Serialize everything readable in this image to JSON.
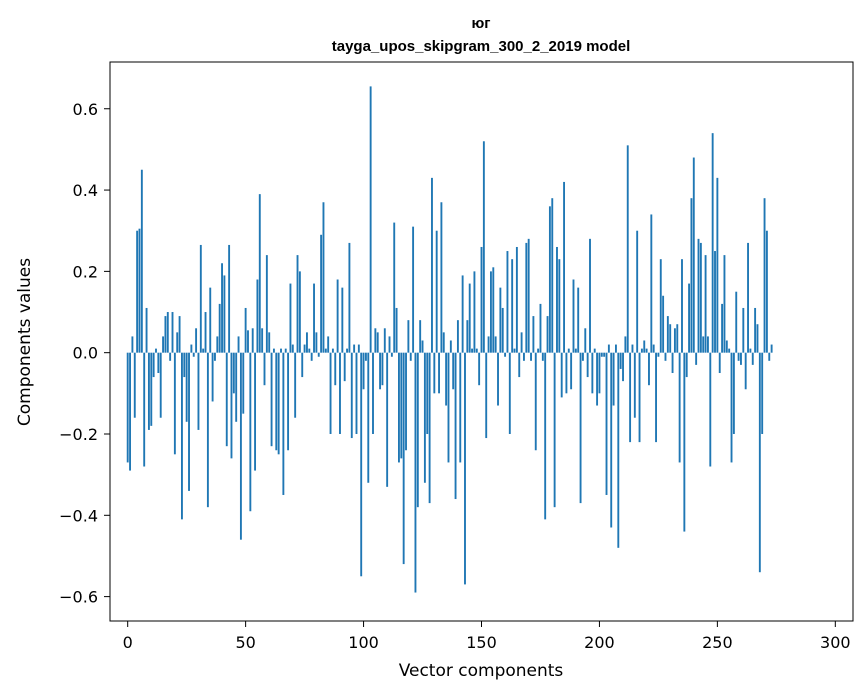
{
  "chart_data": {
    "type": "bar",
    "title": "юг",
    "subtitle": "tayga_upos_skipgram_300_2_2019 model",
    "xlabel": "Vector components",
    "ylabel": "Components values",
    "xlim": [
      -7.5,
      307.5
    ],
    "ylim": [
      -0.66,
      0.715
    ],
    "xticks": [
      0,
      50,
      100,
      150,
      200,
      250,
      300
    ],
    "xtick_labels": [
      "0",
      "50",
      "100",
      "150",
      "200",
      "250",
      "300"
    ],
    "yticks": [
      -0.6,
      -0.4,
      -0.2,
      0.0,
      0.2,
      0.4,
      0.6
    ],
    "ytick_labels": [
      "−0.6",
      "−0.4",
      "−0.2",
      "0.0",
      "0.2",
      "0.4",
      "0.6"
    ],
    "bar_color": "#1f77b4",
    "values": [
      -0.27,
      -0.29,
      0.04,
      -0.16,
      0.3,
      0.305,
      0.45,
      -0.28,
      0.11,
      -0.19,
      -0.18,
      -0.06,
      0.01,
      -0.05,
      -0.16,
      0.04,
      0.09,
      0.1,
      -0.02,
      0.1,
      -0.25,
      0.05,
      0.09,
      -0.41,
      -0.06,
      -0.17,
      -0.34,
      0.02,
      -0.01,
      0.06,
      -0.19,
      0.265,
      0.01,
      0.1,
      -0.38,
      0.16,
      -0.12,
      -0.02,
      0.04,
      0.12,
      0.22,
      0.19,
      -0.23,
      0.265,
      -0.26,
      -0.1,
      -0.17,
      0.04,
      -0.46,
      -0.15,
      0.11,
      0.055,
      -0.39,
      0.06,
      -0.29,
      0.18,
      0.39,
      0.06,
      -0.08,
      0.24,
      0.05,
      -0.23,
      0.01,
      -0.24,
      -0.25,
      0.01,
      -0.35,
      0.01,
      -0.24,
      0.17,
      0.02,
      -0.16,
      0.24,
      0.2,
      -0.06,
      0.02,
      0.05,
      0.01,
      -0.02,
      0.17,
      0.05,
      -0.01,
      0.29,
      0.37,
      0.01,
      0.04,
      -0.2,
      0.01,
      -0.08,
      0.18,
      -0.2,
      0.16,
      -0.07,
      0.01,
      0.27,
      -0.21,
      0.02,
      -0.2,
      0.02,
      -0.55,
      -0.09,
      -0.02,
      -0.32,
      0.655,
      -0.2,
      0.06,
      0.05,
      -0.09,
      -0.08,
      0.06,
      -0.33,
      0.04,
      -0.01,
      0.32,
      0.11,
      -0.27,
      -0.26,
      -0.52,
      -0.24,
      0.08,
      -0.02,
      0.31,
      -0.59,
      -0.38,
      0.08,
      0.03,
      -0.32,
      -0.2,
      -0.37,
      0.43,
      -0.1,
      0.3,
      -0.1,
      0.37,
      0.05,
      -0.13,
      -0.27,
      0.03,
      -0.09,
      -0.36,
      0.08,
      -0.27,
      0.19,
      -0.57,
      0.08,
      0.17,
      0.01,
      0.2,
      0.01,
      -0.08,
      0.26,
      0.52,
      -0.21,
      0.04,
      0.2,
      0.21,
      0.04,
      -0.13,
      0.16,
      0.11,
      -0.01,
      0.25,
      -0.2,
      0.23,
      0.01,
      0.26,
      -0.06,
      0.05,
      -0.02,
      0.27,
      0.28,
      -0.02,
      0.09,
      -0.24,
      0.01,
      0.12,
      -0.02,
      -0.41,
      0.09,
      0.36,
      0.38,
      -0.38,
      0.26,
      0.23,
      -0.11,
      0.42,
      -0.1,
      0.01,
      -0.09,
      0.18,
      0.01,
      0.16,
      -0.37,
      -0.02,
      0.06,
      -0.06,
      0.28,
      -0.1,
      0.01,
      -0.13,
      -0.1,
      -0.01,
      -0.01,
      -0.35,
      0.02,
      -0.43,
      -0.13,
      0.02,
      -0.48,
      -0.04,
      -0.07,
      0.04,
      0.51,
      -0.22,
      0.02,
      -0.16,
      0.3,
      -0.22,
      0.01,
      0.03,
      0.01,
      -0.08,
      0.34,
      0.02,
      -0.22,
      -0.01,
      0.23,
      0.14,
      -0.02,
      0.09,
      0.07,
      -0.05,
      0.06,
      0.07,
      -0.27,
      0.23,
      -0.44,
      -0.06,
      0.17,
      0.38,
      0.48,
      -0.03,
      0.28,
      0.27,
      0.04,
      0.24,
      0.04,
      -0.28,
      0.54,
      0.25,
      0.43,
      -0.05,
      0.12,
      0.24,
      0.03,
      0.01,
      -0.27,
      -0.2,
      0.15,
      -0.02,
      -0.03,
      0.11,
      -0.09,
      0.27,
      0.01,
      -0.03,
      0.11,
      0.07,
      -0.54,
      -0.2,
      0.38,
      0.3,
      -0.02,
      0.02
    ],
    "grid": false
  }
}
